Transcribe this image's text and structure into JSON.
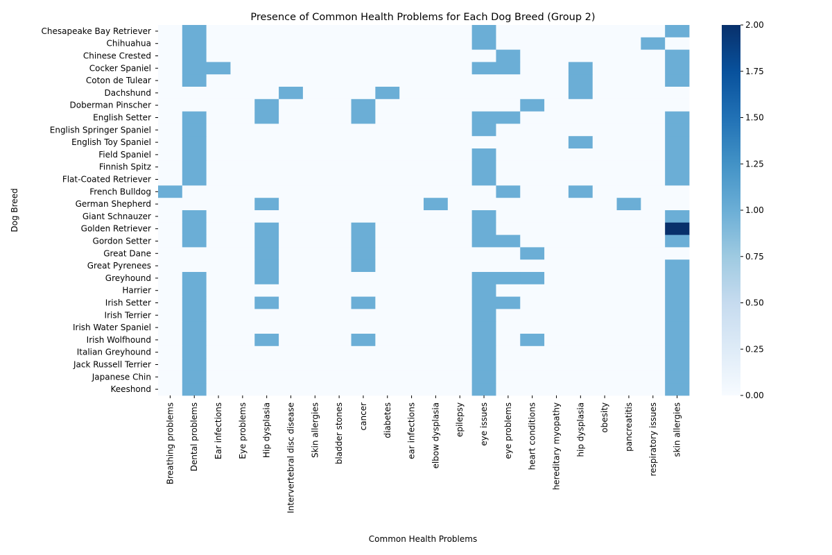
{
  "chart_data": {
    "type": "heatmap",
    "title": "Presence of Common Health Problems for Each Dog Breed (Group 2)",
    "xlabel": "Common Health Problems",
    "ylabel": "Dog Breed",
    "colormap": "Blues",
    "colors": {
      "low": "#f7fbff",
      "mid": "#6baed6",
      "high": "#08306b"
    },
    "vmin": 0,
    "vmax": 2,
    "colorbar_ticks": [
      "0.00",
      "0.25",
      "0.50",
      "0.75",
      "1.00",
      "1.25",
      "1.50",
      "1.75",
      "2.00"
    ],
    "columns": [
      "Breathing problems",
      "Dental problems",
      "Ear infections",
      "Eye problems",
      "Hip dysplasia",
      "Intervertebral disc disease",
      "Skin allergies",
      "bladder stones",
      "cancer",
      "diabetes",
      "ear infections",
      "elbow dysplasia",
      "epilepsy",
      "eye issues",
      "eye problems",
      "heart conditions",
      "hereditary myopathy",
      "hip dysplasia",
      "obesity",
      "pancreatitis",
      "respiratory issues",
      "skin allergies"
    ],
    "rows": [
      "Chesapeake Bay Retriever",
      "Chihuahua",
      "Chinese Crested",
      "Cocker Spaniel",
      "Coton de Tulear",
      "Dachshund",
      "Doberman Pinscher",
      "English Setter",
      "English Springer Spaniel",
      "English Toy Spaniel",
      "Field Spaniel",
      "Finnish Spitz",
      "Flat-Coated Retriever",
      "French Bulldog",
      "German Shepherd",
      "Giant Schnauzer",
      "Golden Retriever",
      "Gordon Setter",
      "Great Dane",
      "Great Pyrenees",
      "Greyhound",
      "Harrier",
      "Irish Setter",
      "Irish Terrier",
      "Irish Water Spaniel",
      "Irish Wolfhound",
      "Italian Greyhound",
      "Jack Russell Terrier",
      "Japanese Chin",
      "Keeshond"
    ],
    "values": [
      [
        0,
        1,
        0,
        0,
        0,
        0,
        0,
        0,
        0,
        0,
        0,
        0,
        0,
        1,
        0,
        0,
        0,
        0,
        0,
        0,
        0,
        1
      ],
      [
        0,
        1,
        0,
        0,
        0,
        0,
        0,
        0,
        0,
        0,
        0,
        0,
        0,
        1,
        0,
        0,
        0,
        0,
        0,
        0,
        1,
        0
      ],
      [
        0,
        1,
        0,
        0,
        0,
        0,
        0,
        0,
        0,
        0,
        0,
        0,
        0,
        0,
        1,
        0,
        0,
        0,
        0,
        0,
        0,
        1
      ],
      [
        0,
        1,
        1,
        0,
        0,
        0,
        0,
        0,
        0,
        0,
        0,
        0,
        0,
        1,
        1,
        0,
        0,
        1,
        0,
        0,
        0,
        1
      ],
      [
        0,
        1,
        0,
        0,
        0,
        0,
        0,
        0,
        0,
        0,
        0,
        0,
        0,
        0,
        0,
        0,
        0,
        1,
        0,
        0,
        0,
        1
      ],
      [
        0,
        0,
        0,
        0,
        0,
        1,
        0,
        0,
        0,
        1,
        0,
        0,
        0,
        0,
        0,
        0,
        0,
        1,
        0,
        0,
        0,
        0
      ],
      [
        0,
        0,
        0,
        0,
        1,
        0,
        0,
        0,
        1,
        0,
        0,
        0,
        0,
        0,
        0,
        1,
        0,
        0,
        0,
        0,
        0,
        0
      ],
      [
        0,
        1,
        0,
        0,
        1,
        0,
        0,
        0,
        1,
        0,
        0,
        0,
        0,
        1,
        1,
        0,
        0,
        0,
        0,
        0,
        0,
        1
      ],
      [
        0,
        1,
        0,
        0,
        0,
        0,
        0,
        0,
        0,
        0,
        0,
        0,
        0,
        1,
        0,
        0,
        0,
        0,
        0,
        0,
        0,
        1
      ],
      [
        0,
        1,
        0,
        0,
        0,
        0,
        0,
        0,
        0,
        0,
        0,
        0,
        0,
        0,
        0,
        0,
        0,
        1,
        0,
        0,
        0,
        1
      ],
      [
        0,
        1,
        0,
        0,
        0,
        0,
        0,
        0,
        0,
        0,
        0,
        0,
        0,
        1,
        0,
        0,
        0,
        0,
        0,
        0,
        0,
        1
      ],
      [
        0,
        1,
        0,
        0,
        0,
        0,
        0,
        0,
        0,
        0,
        0,
        0,
        0,
        1,
        0,
        0,
        0,
        0,
        0,
        0,
        0,
        1
      ],
      [
        0,
        1,
        0,
        0,
        0,
        0,
        0,
        0,
        0,
        0,
        0,
        0,
        0,
        1,
        0,
        0,
        0,
        0,
        0,
        0,
        0,
        1
      ],
      [
        1,
        0,
        0,
        0,
        0,
        0,
        0,
        0,
        0,
        0,
        0,
        0,
        0,
        0,
        1,
        0,
        0,
        1,
        0,
        0,
        0,
        0
      ],
      [
        0,
        0,
        0,
        0,
        1,
        0,
        0,
        0,
        0,
        0,
        0,
        1,
        0,
        0,
        0,
        0,
        0,
        0,
        0,
        1,
        0,
        0
      ],
      [
        0,
        1,
        0,
        0,
        0,
        0,
        0,
        0,
        0,
        0,
        0,
        0,
        0,
        1,
        0,
        0,
        0,
        0,
        0,
        0,
        0,
        1
      ],
      [
        0,
        1,
        0,
        0,
        1,
        0,
        0,
        0,
        1,
        0,
        0,
        0,
        0,
        1,
        0,
        0,
        0,
        0,
        0,
        0,
        0,
        2
      ],
      [
        0,
        1,
        0,
        0,
        1,
        0,
        0,
        0,
        1,
        0,
        0,
        0,
        0,
        1,
        1,
        0,
        0,
        0,
        0,
        0,
        0,
        1
      ],
      [
        0,
        0,
        0,
        0,
        1,
        0,
        0,
        0,
        1,
        0,
        0,
        0,
        0,
        0,
        0,
        1,
        0,
        0,
        0,
        0,
        0,
        0
      ],
      [
        0,
        0,
        0,
        0,
        1,
        0,
        0,
        0,
        1,
        0,
        0,
        0,
        0,
        0,
        0,
        0,
        0,
        0,
        0,
        0,
        0,
        1
      ],
      [
        0,
        1,
        0,
        0,
        1,
        0,
        0,
        0,
        0,
        0,
        0,
        0,
        0,
        1,
        1,
        1,
        0,
        0,
        0,
        0,
        0,
        1
      ],
      [
        0,
        1,
        0,
        0,
        0,
        0,
        0,
        0,
        0,
        0,
        0,
        0,
        0,
        1,
        0,
        0,
        0,
        0,
        0,
        0,
        0,
        1
      ],
      [
        0,
        1,
        0,
        0,
        1,
        0,
        0,
        0,
        1,
        0,
        0,
        0,
        0,
        1,
        1,
        0,
        0,
        0,
        0,
        0,
        0,
        1
      ],
      [
        0,
        1,
        0,
        0,
        0,
        0,
        0,
        0,
        0,
        0,
        0,
        0,
        0,
        1,
        0,
        0,
        0,
        0,
        0,
        0,
        0,
        1
      ],
      [
        0,
        1,
        0,
        0,
        0,
        0,
        0,
        0,
        0,
        0,
        0,
        0,
        0,
        1,
        0,
        0,
        0,
        0,
        0,
        0,
        0,
        1
      ],
      [
        0,
        1,
        0,
        0,
        1,
        0,
        0,
        0,
        1,
        0,
        0,
        0,
        0,
        1,
        0,
        1,
        0,
        0,
        0,
        0,
        0,
        1
      ],
      [
        0,
        1,
        0,
        0,
        0,
        0,
        0,
        0,
        0,
        0,
        0,
        0,
        0,
        1,
        0,
        0,
        0,
        0,
        0,
        0,
        0,
        1
      ],
      [
        0,
        1,
        0,
        0,
        0,
        0,
        0,
        0,
        0,
        0,
        0,
        0,
        0,
        1,
        0,
        0,
        0,
        0,
        0,
        0,
        0,
        1
      ],
      [
        0,
        1,
        0,
        0,
        0,
        0,
        0,
        0,
        0,
        0,
        0,
        0,
        0,
        1,
        0,
        0,
        0,
        0,
        0,
        0,
        0,
        1
      ],
      [
        0,
        1,
        0,
        0,
        0,
        0,
        0,
        0,
        0,
        0,
        0,
        0,
        0,
        1,
        0,
        0,
        0,
        0,
        0,
        0,
        0,
        1
      ]
    ]
  }
}
